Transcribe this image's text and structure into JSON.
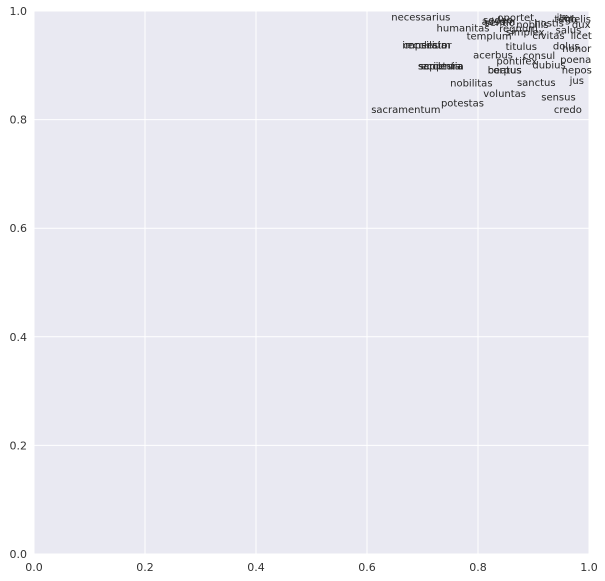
{
  "chart_data": {
    "type": "scatter",
    "title": "",
    "xlabel": "",
    "ylabel": "",
    "xlim": [
      0,
      1
    ],
    "ylim": [
      0,
      1
    ],
    "grid": true,
    "x_ticks": [
      "0.0",
      "0.2",
      "0.4",
      "0.6",
      "0.8",
      "1.0"
    ],
    "y_ticks": [
      "0.0",
      "0.2",
      "0.4",
      "0.6",
      "0.8",
      "1.0"
    ],
    "colors": {
      "plot_background": "#e9e9f2",
      "grid": "#ffffff",
      "text": "#262626"
    },
    "points": [
      {
        "label": "necessarius",
        "x": 0.697,
        "y": 0.989
      },
      {
        "label": "oportet",
        "x": 0.868,
        "y": 0.988
      },
      {
        "label": "iter",
        "x": 0.957,
        "y": 0.988
      },
      {
        "label": "fidelis",
        "x": 0.977,
        "y": 0.985
      },
      {
        "label": "sedeo",
        "x": 0.836,
        "y": 0.983
      },
      {
        "label": "adsum",
        "x": 0.837,
        "y": 0.981
      },
      {
        "label": "sentio",
        "x": 0.839,
        "y": 0.979
      },
      {
        "label": "tego",
        "x": 0.958,
        "y": 0.985
      },
      {
        "label": "hostis",
        "x": 0.928,
        "y": 0.978
      },
      {
        "label": "nobilis",
        "x": 0.898,
        "y": 0.975
      },
      {
        "label": "dux",
        "x": 0.986,
        "y": 0.975
      },
      {
        "label": "humanitas",
        "x": 0.773,
        "y": 0.969
      },
      {
        "label": "regnum",
        "x": 0.873,
        "y": 0.968
      },
      {
        "label": "simplex",
        "x": 0.885,
        "y": 0.961
      },
      {
        "label": "salus",
        "x": 0.963,
        "y": 0.965
      },
      {
        "label": "templum",
        "x": 0.82,
        "y": 0.954
      },
      {
        "label": "civitas",
        "x": 0.927,
        "y": 0.955
      },
      {
        "label": "licet",
        "x": 0.986,
        "y": 0.955
      },
      {
        "label": "imperator",
        "x": 0.708,
        "y": 0.937
      },
      {
        "label": "consilium",
        "x": 0.708,
        "y": 0.937
      },
      {
        "label": "ecclesia",
        "x": 0.708,
        "y": 0.937
      },
      {
        "label": "titulus",
        "x": 0.878,
        "y": 0.935
      },
      {
        "label": "dolus",
        "x": 0.959,
        "y": 0.936
      },
      {
        "label": "honor",
        "x": 0.978,
        "y": 0.931
      },
      {
        "label": "acerbus",
        "x": 0.827,
        "y": 0.919
      },
      {
        "label": "consul",
        "x": 0.91,
        "y": 0.918
      },
      {
        "label": "poena",
        "x": 0.976,
        "y": 0.911
      },
      {
        "label": "pontifex",
        "x": 0.87,
        "y": 0.908
      },
      {
        "label": "dubius",
        "x": 0.928,
        "y": 0.901
      },
      {
        "label": "sapientia",
        "x": 0.733,
        "y": 0.899
      },
      {
        "label": "scriptura",
        "x": 0.733,
        "y": 0.899
      },
      {
        "label": "ecclesia",
        "x": 0.733,
        "y": 0.899
      },
      {
        "label": "beatus",
        "x": 0.848,
        "y": 0.891
      },
      {
        "label": "corpus",
        "x": 0.848,
        "y": 0.891
      },
      {
        "label": "nepos",
        "x": 0.978,
        "y": 0.891
      },
      {
        "label": "jus",
        "x": 0.978,
        "y": 0.872
      },
      {
        "label": "nobilitas",
        "x": 0.788,
        "y": 0.867
      },
      {
        "label": "sanctus",
        "x": 0.905,
        "y": 0.868
      },
      {
        "label": "voluntas",
        "x": 0.848,
        "y": 0.848
      },
      {
        "label": "sensus",
        "x": 0.945,
        "y": 0.842
      },
      {
        "label": "potestas",
        "x": 0.772,
        "y": 0.831
      },
      {
        "label": "sacramentum",
        "x": 0.67,
        "y": 0.819
      },
      {
        "label": "credo",
        "x": 0.962,
        "y": 0.819
      }
    ]
  }
}
